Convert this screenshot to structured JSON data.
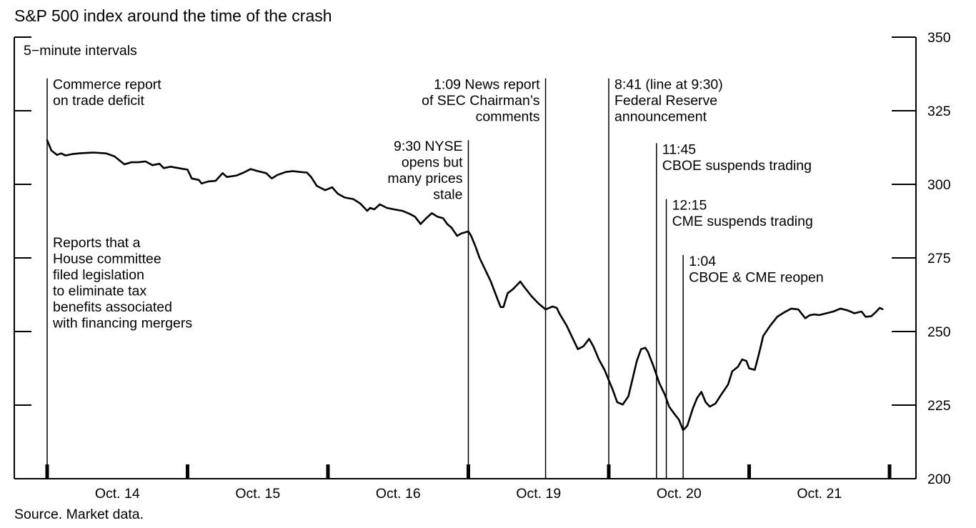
{
  "chart_data": {
    "type": "line",
    "title": "S&P 500 index around the time of the crash",
    "subtitle": "5−minute intervals",
    "source": "Source. Market data.",
    "ylim": [
      200,
      350
    ],
    "y_ticks": [
      200,
      225,
      250,
      275,
      300,
      325,
      350
    ],
    "x_categories": [
      "Oct. 14",
      "Oct. 15",
      "Oct. 16",
      "Oct. 19",
      "Oct. 20",
      "Oct. 21"
    ],
    "x_range": [
      0,
      6
    ],
    "grid": false,
    "series": [
      {
        "values": [
          [
            0.0,
            315
          ],
          [
            0.03,
            311.5
          ],
          [
            0.07,
            310
          ],
          [
            0.1,
            310.5
          ],
          [
            0.13,
            309.8
          ],
          [
            0.18,
            310.3
          ],
          [
            0.25,
            310.6
          ],
          [
            0.33,
            310.8
          ],
          [
            0.42,
            310.5
          ],
          [
            0.48,
            309.5
          ],
          [
            0.55,
            306.8
          ],
          [
            0.6,
            307.5
          ],
          [
            0.65,
            307.5
          ],
          [
            0.7,
            307.8
          ],
          [
            0.75,
            306.5
          ],
          [
            0.8,
            307.0
          ],
          [
            0.83,
            305.5
          ],
          [
            0.88,
            306.0
          ],
          [
            0.95,
            305.4
          ],
          [
            1.0,
            305.0
          ],
          [
            1.03,
            302.0
          ],
          [
            1.08,
            301.5
          ],
          [
            1.1,
            300.3
          ],
          [
            1.15,
            301.0
          ],
          [
            1.2,
            301.2
          ],
          [
            1.25,
            303.8
          ],
          [
            1.28,
            302.5
          ],
          [
            1.35,
            303.0
          ],
          [
            1.4,
            304.0
          ],
          [
            1.45,
            305.2
          ],
          [
            1.5,
            304.5
          ],
          [
            1.56,
            303.8
          ],
          [
            1.6,
            302.0
          ],
          [
            1.64,
            303.2
          ],
          [
            1.7,
            304.2
          ],
          [
            1.75,
            304.5
          ],
          [
            1.8,
            304.2
          ],
          [
            1.85,
            304.0
          ],
          [
            1.88,
            302.5
          ],
          [
            1.92,
            299.5
          ],
          [
            1.98,
            298.0
          ],
          [
            2.03,
            299.0
          ],
          [
            2.07,
            296.8
          ],
          [
            2.12,
            295.5
          ],
          [
            2.18,
            295.0
          ],
          [
            2.23,
            293.5
          ],
          [
            2.28,
            291.0
          ],
          [
            2.3,
            292.0
          ],
          [
            2.33,
            291.5
          ],
          [
            2.37,
            293.2
          ],
          [
            2.42,
            292.0
          ],
          [
            2.47,
            291.5
          ],
          [
            2.53,
            291.0
          ],
          [
            2.58,
            290.0
          ],
          [
            2.62,
            289.0
          ],
          [
            2.66,
            286.5
          ],
          [
            2.7,
            288.5
          ],
          [
            2.74,
            290.2
          ],
          [
            2.78,
            289.0
          ],
          [
            2.82,
            288.5
          ],
          [
            2.85,
            286.5
          ],
          [
            2.88,
            285.3
          ],
          [
            2.92,
            282.5
          ],
          [
            2.95,
            283.3
          ],
          [
            3.0,
            284.0
          ],
          [
            3.02,
            282.5
          ],
          [
            3.05,
            279.0
          ],
          [
            3.08,
            275.0
          ],
          [
            3.12,
            271.0
          ],
          [
            3.16,
            267.0
          ],
          [
            3.2,
            262.0
          ],
          [
            3.23,
            258.3
          ],
          [
            3.25,
            258.3
          ],
          [
            3.28,
            263.0
          ],
          [
            3.32,
            264.5
          ],
          [
            3.37,
            267.0
          ],
          [
            3.4,
            265.0
          ],
          [
            3.45,
            262.0
          ],
          [
            3.5,
            259.5
          ],
          [
            3.55,
            257.5
          ],
          [
            3.6,
            258.5
          ],
          [
            3.63,
            258.0
          ],
          [
            3.65,
            256.0
          ],
          [
            3.7,
            252.0
          ],
          [
            3.75,
            247.0
          ],
          [
            3.78,
            244.0
          ],
          [
            3.82,
            245.0
          ],
          [
            3.86,
            247.5
          ],
          [
            3.89,
            245.0
          ],
          [
            3.93,
            240.5
          ],
          [
            3.97,
            237.0
          ],
          [
            4.0,
            233.5
          ],
          [
            4.03,
            230.0
          ],
          [
            4.06,
            226.0
          ],
          [
            4.1,
            225.2
          ],
          [
            4.14,
            228.0
          ],
          [
            4.17,
            234.0
          ],
          [
            4.2,
            240.0
          ],
          [
            4.23,
            244.0
          ],
          [
            4.26,
            244.5
          ],
          [
            4.28,
            243.0
          ],
          [
            4.32,
            238.0
          ],
          [
            4.36,
            232.5
          ],
          [
            4.4,
            228.5
          ],
          [
            4.43,
            224.5
          ],
          [
            4.46,
            222.5
          ],
          [
            4.5,
            220.0
          ],
          [
            4.53,
            216.5
          ],
          [
            4.56,
            218.0
          ],
          [
            4.6,
            224.0
          ],
          [
            4.63,
            227.5
          ],
          [
            4.66,
            229.5
          ],
          [
            4.69,
            226.0
          ],
          [
            4.72,
            224.5
          ],
          [
            4.76,
            225.5
          ],
          [
            4.8,
            228.5
          ],
          [
            4.85,
            232.0
          ],
          [
            4.88,
            236.5
          ],
          [
            4.92,
            238.0
          ],
          [
            4.95,
            240.5
          ],
          [
            4.98,
            240.0
          ],
          [
            5.0,
            237.5
          ],
          [
            5.04,
            237.0
          ],
          [
            5.07,
            242.5
          ],
          [
            5.1,
            248.5
          ],
          [
            5.15,
            252.0
          ],
          [
            5.2,
            255.0
          ],
          [
            5.25,
            256.5
          ],
          [
            5.3,
            257.8
          ],
          [
            5.35,
            257.5
          ],
          [
            5.4,
            254.5
          ],
          [
            5.43,
            255.5
          ],
          [
            5.46,
            255.8
          ],
          [
            5.5,
            255.6
          ],
          [
            5.55,
            256.2
          ],
          [
            5.6,
            256.8
          ],
          [
            5.65,
            257.8
          ],
          [
            5.7,
            257.2
          ],
          [
            5.75,
            256.2
          ],
          [
            5.8,
            256.8
          ],
          [
            5.83,
            255.0
          ],
          [
            5.87,
            255.2
          ],
          [
            5.9,
            256.5
          ],
          [
            5.93,
            258.0
          ],
          [
            5.95,
            257.6
          ]
        ]
      }
    ],
    "events": [
      {
        "x": 0.0,
        "top": 336,
        "anchor": "start",
        "lines": [
          "Commerce report",
          "on trade deficit"
        ]
      },
      {
        "x": 3.0,
        "top": 315,
        "anchor": "end",
        "lines": [
          "9:30 NYSE",
          "opens but",
          "many prices",
          "stale"
        ]
      },
      {
        "x": 3.55,
        "top": 336,
        "anchor": "end",
        "lines": [
          "1:09 News report",
          "of SEC Chairman’s",
          "comments"
        ]
      },
      {
        "x": 4.0,
        "top": 336,
        "anchor": "start",
        "lines": [
          "8:41 (line at 9:30)",
          "Federal Reserve",
          "announcement"
        ]
      },
      {
        "x": 4.34,
        "top": 314,
        "anchor": "start",
        "lines": [
          "11:45",
          "CBOE suspends trading"
        ]
      },
      {
        "x": 4.41,
        "top": 295,
        "anchor": "start",
        "lines": [
          "12:15",
          "CME suspends trading"
        ]
      },
      {
        "x": 4.53,
        "top": 276,
        "anchor": "start",
        "lines": [
          "1:04",
          "CBOE & CME reopen"
        ]
      }
    ],
    "side_note": [
      "Reports that a",
      "House committee",
      "filed legislation",
      "to eliminate tax",
      "benefits associated",
      "with financing mergers"
    ]
  }
}
